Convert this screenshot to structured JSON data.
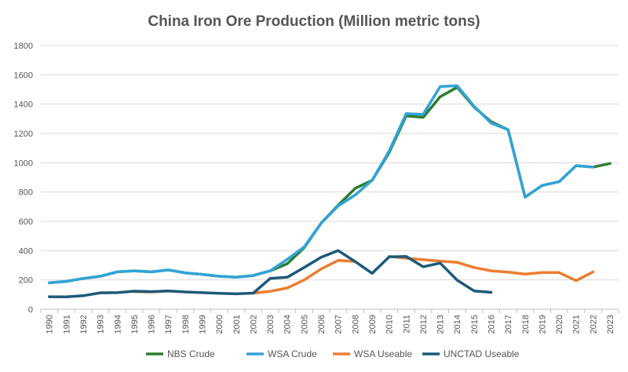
{
  "chart_data": {
    "type": "line",
    "title": "China Iron Ore Production (Million metric tons)",
    "xlabel": "",
    "ylabel": "",
    "ylim": [
      0,
      1800
    ],
    "yticks": [
      0,
      200,
      400,
      600,
      800,
      1000,
      1200,
      1400,
      1600,
      1800
    ],
    "grid": true,
    "legend_position": "bottom",
    "x": [
      "1990",
      "1991",
      "1992",
      "1993",
      "1994",
      "1995",
      "1996",
      "1997",
      "1998",
      "1999",
      "2000",
      "2001",
      "2002",
      "2003",
      "2004",
      "2005",
      "2006",
      "2007",
      "2008",
      "2009",
      "2010",
      "2011",
      "2012",
      "2013",
      "2014",
      "2015",
      "2016",
      "2017",
      "2018",
      "2019",
      "2020",
      "2021",
      "2022",
      "2023"
    ],
    "series": [
      {
        "name": "NBS Crude",
        "color": "#2e7d32",
        "values": [
          180,
          190,
          210,
          225,
          255,
          262,
          255,
          268,
          248,
          238,
          225,
          218,
          230,
          262,
          310,
          420,
          588,
          710,
          825,
          880,
          1070,
          1320,
          1310,
          1450,
          1515,
          1380,
          1280,
          1225,
          765,
          845,
          870,
          980,
          970,
          995
        ]
      },
      {
        "name": "WSA Crude",
        "color": "#31a4d8",
        "values": [
          180,
          190,
          210,
          225,
          255,
          262,
          255,
          268,
          248,
          238,
          225,
          218,
          230,
          262,
          340,
          425,
          588,
          705,
          780,
          880,
          1080,
          1335,
          1330,
          1520,
          1525,
          1385,
          1270,
          1225,
          765,
          845,
          870,
          980,
          970,
          null
        ]
      },
      {
        "name": "WSA Useable",
        "color": "#ed7d31",
        "values": [
          null,
          null,
          null,
          null,
          null,
          120,
          118,
          125,
          null,
          null,
          null,
          null,
          110,
          122,
          145,
          200,
          275,
          333,
          325,
          null,
          360,
          348,
          338,
          328,
          320,
          285,
          262,
          253,
          240,
          250,
          250,
          195,
          255,
          null
        ]
      },
      {
        "name": "UNCTAD Useable",
        "color": "#1d5a7a",
        "values": [
          85,
          84,
          92,
          112,
          113,
          123,
          120,
          125,
          118,
          113,
          108,
          105,
          110,
          210,
          218,
          285,
          355,
          400,
          325,
          245,
          358,
          360,
          290,
          315,
          198,
          125,
          115,
          null,
          null,
          null,
          null,
          null,
          null,
          null
        ]
      }
    ]
  }
}
